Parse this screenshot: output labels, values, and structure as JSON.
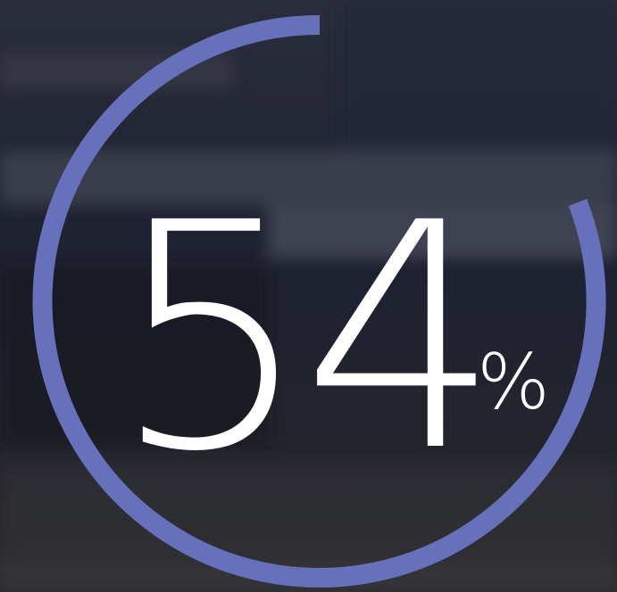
{
  "progress": {
    "number": 54,
    "unit": "%"
  }
}
